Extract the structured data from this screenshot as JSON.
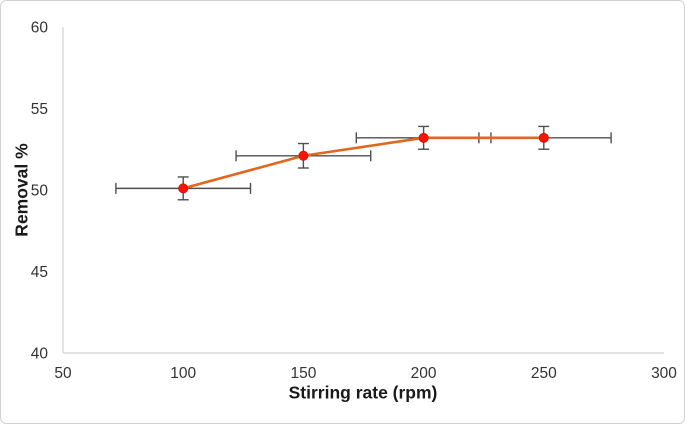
{
  "figure": {
    "background": "#ffffff",
    "border_color": "#d2d2d2"
  },
  "chart_data": {
    "type": "line",
    "title": "",
    "xlabel": "Stirring rate (rpm)",
    "ylabel": "Removal %",
    "xlim": [
      50,
      300
    ],
    "ylim": [
      40,
      60
    ],
    "x_ticks": [
      "50",
      "100",
      "150",
      "200",
      "250",
      "300"
    ],
    "y_ticks": [
      "40",
      "45",
      "50",
      "55",
      "60"
    ],
    "grid": false,
    "legend_position": "none",
    "series": [
      {
        "name": "Removal %",
        "x": [
          100,
          150,
          200,
          250
        ],
        "y": [
          50.1,
          52.1,
          53.2,
          53.2
        ],
        "x_err_minus": [
          28,
          28,
          28,
          22
        ],
        "x_err_plus": [
          28,
          28,
          23,
          28
        ],
        "y_err": [
          0.7,
          0.75,
          0.7,
          0.7
        ],
        "line_color": "#e2661b",
        "marker_color": "#fb1405",
        "marker_edge_color": "#c21807",
        "error_bar_color": "#4f4f4f"
      }
    ],
    "axis_line_color": "#d9d9d9",
    "tick_label_color": "#333333",
    "axis_title_color": "#1a1a1a"
  }
}
